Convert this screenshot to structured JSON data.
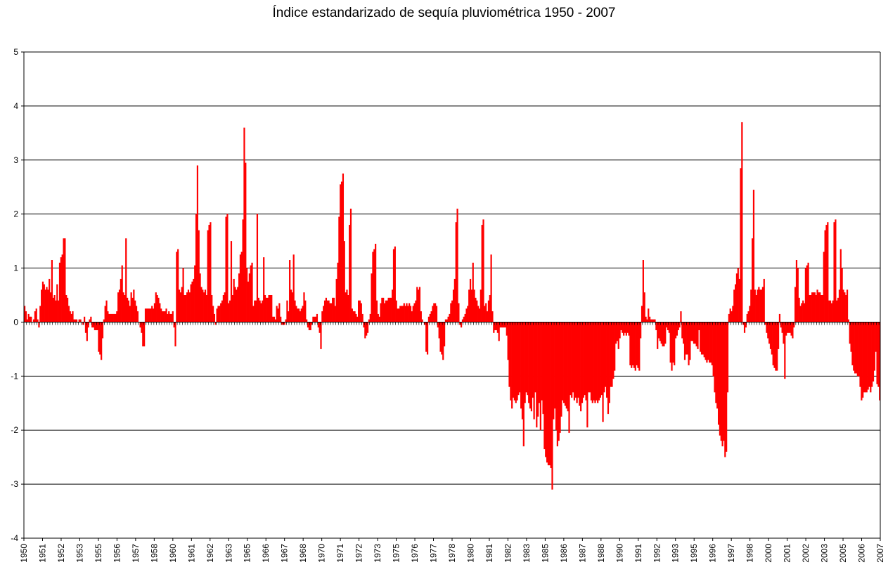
{
  "chart_data": {
    "type": "bar",
    "title": "Índice estandarizado de sequía pluviométrica 1950 - 2007",
    "xlabel": "",
    "ylabel": "",
    "ylim": [
      -4,
      5
    ],
    "yticks": [
      5,
      4,
      3,
      2,
      1,
      0,
      -1,
      -2,
      -3,
      -4
    ],
    "grid": true,
    "legend": "none",
    "color": "#ff0000",
    "x_tick_labels": [
      "1950",
      "1951",
      "1952",
      "1953",
      "1955",
      "1956",
      "1957",
      "1958",
      "1960",
      "1961",
      "1962",
      "1963",
      "1965",
      "1966",
      "1967",
      "1968",
      "1970",
      "1971",
      "1972",
      "1973",
      "1975",
      "1976",
      "1977",
      "1978",
      "1980",
      "1981",
      "1982",
      "1983",
      "1985",
      "1986",
      "1987",
      "1988",
      "1990",
      "1991",
      "1992",
      "1993",
      "1995",
      "1996",
      "1997",
      "1998",
      "2000",
      "2001",
      "2002",
      "2003",
      "2005",
      "2006",
      "2007"
    ],
    "series": [
      {
        "start": "1950-01",
        "frequency": "monthly",
        "values": [
          0.3,
          0.2,
          0.05,
          0.15,
          0.1,
          0.1,
          0,
          0.05,
          0.2,
          0.25,
          0.05,
          -0.1,
          0.3,
          0.6,
          0.75,
          0.7,
          0.6,
          0.65,
          0.6,
          0.8,
          0.55,
          1.15,
          0.45,
          0.5,
          0.4,
          0.7,
          0.4,
          1.1,
          1.2,
          1.25,
          1.55,
          1.55,
          0.5,
          0.45,
          0.3,
          0.2,
          0.15,
          0.2,
          0.05,
          0.05,
          0.05,
          0,
          0.05,
          0.05,
          0,
          -0.05,
          0.1,
          -0.2,
          -0.35,
          -0.1,
          0.05,
          0.1,
          -0.1,
          -0.1,
          -0.15,
          -0.15,
          -0.15,
          -0.55,
          -0.6,
          -0.7,
          -0.3,
          0.05,
          0.3,
          0.4,
          0.2,
          0.15,
          0.15,
          0.15,
          0.15,
          0.15,
          0.15,
          0.2,
          0.55,
          0.6,
          0.8,
          1.05,
          0.55,
          0.5,
          1.55,
          0.45,
          0.4,
          0.3,
          0.55,
          0.45,
          0.6,
          0.4,
          0.3,
          0.2,
          0,
          -0.1,
          -0.2,
          -0.45,
          -0.45,
          0.25,
          0.25,
          0.25,
          0.25,
          0.25,
          0.3,
          0.25,
          0.35,
          0.55,
          0.5,
          0.45,
          0.35,
          0.25,
          0.2,
          0.2,
          0.2,
          0.25,
          0.15,
          0.2,
          0.15,
          0.15,
          0.2,
          -0.1,
          -0.45,
          1.3,
          1.35,
          0.6,
          0.55,
          0.65,
          1.0,
          0.5,
          0.5,
          0.55,
          0.6,
          0.55,
          0.7,
          0.75,
          0.8,
          1.05,
          2.0,
          2.9,
          1.7,
          0.9,
          0.65,
          0.6,
          0.55,
          0.6,
          0.5,
          1.7,
          1.8,
          1.85,
          0.5,
          0.3,
          0.15,
          -0.05,
          0.25,
          0.3,
          0.3,
          0.35,
          0.4,
          0.5,
          0.55,
          1.95,
          2.0,
          0.35,
          0.4,
          1.5,
          0.5,
          0.8,
          0.65,
          0.6,
          0.65,
          0.9,
          1.25,
          1.3,
          1.9,
          3.6,
          2.95,
          1.0,
          0.75,
          0.9,
          1.05,
          1.1,
          0.3,
          0.4,
          0.4,
          2.0,
          0.45,
          0.4,
          0.35,
          0.4,
          1.2,
          0.5,
          0.45,
          0.45,
          0.5,
          0.5,
          0.5,
          0.1,
          0.1,
          0.05,
          0.3,
          0.25,
          0.35,
          0.1,
          -0.05,
          -0.05,
          -0.05,
          0.05,
          0.4,
          0.2,
          1.15,
          0.6,
          0.55,
          1.25,
          0.4,
          0.3,
          0.25,
          0.25,
          0.2,
          0.25,
          0.3,
          0.55,
          0.4,
          0.05,
          -0.1,
          -0.15,
          -0.15,
          -0.05,
          0.1,
          0.1,
          0.1,
          0.15,
          -0.1,
          -0.2,
          -0.5,
          0.2,
          0.3,
          0.4,
          0.45,
          0.4,
          0.4,
          0.35,
          0.35,
          0.45,
          0.45,
          0.3,
          0.8,
          1.1,
          1.95,
          2.55,
          2.6,
          2.75,
          1.5,
          0.55,
          0.6,
          0.5,
          1.8,
          2.1,
          0.25,
          0.2,
          0.2,
          0.15,
          0.1,
          0.4,
          0.4,
          0.35,
          0.15,
          -0.1,
          -0.3,
          -0.25,
          -0.2,
          0.05,
          0.15,
          0.9,
          1.3,
          1.35,
          1.45,
          0.4,
          0.15,
          0.1,
          0.35,
          0.45,
          0.45,
          0.35,
          0.4,
          0.4,
          0.45,
          0.45,
          0.45,
          0.6,
          1.35,
          1.4,
          0.4,
          0.25,
          0.25,
          0.3,
          0.3,
          0.3,
          0.35,
          0.3,
          0.35,
          0.3,
          0.35,
          0.3,
          0.2,
          0.3,
          0.35,
          0.4,
          0.65,
          0.6,
          0.65,
          0.2,
          0.05,
          0,
          -0.05,
          -0.55,
          -0.6,
          0.1,
          0.15,
          0.2,
          0.3,
          0.35,
          0.35,
          0.3,
          -0.1,
          -0.3,
          -0.55,
          -0.6,
          -0.7,
          -0.45,
          0.05,
          0.05,
          0.1,
          0.15,
          0.35,
          0.4,
          0.6,
          0.8,
          1.85,
          2.1,
          0.35,
          -0.05,
          -0.1,
          0.05,
          0.1,
          0.15,
          0.25,
          0.3,
          0.6,
          0.8,
          0.6,
          1.1,
          0.6,
          0.45,
          0.4,
          0.3,
          0.25,
          0.6,
          1.8,
          1.9,
          0.3,
          0.35,
          0.2,
          0.4,
          0.5,
          1.25,
          0.2,
          -0.2,
          -0.15,
          -0.15,
          -0.2,
          -0.35,
          -0.1,
          -0.1,
          -0.1,
          -0.1,
          -0.1,
          -0.25,
          -0.7,
          -1.2,
          -1.45,
          -1.6,
          -1.4,
          -1.45,
          -1.5,
          -1.45,
          -1.35,
          -1.3,
          -1.6,
          -1.8,
          -2.3,
          -1.5,
          -1.3,
          -1.35,
          -1.5,
          -1.6,
          -1.65,
          -1.4,
          -1.8,
          -1.3,
          -1.95,
          -1.75,
          -1.5,
          -2.0,
          -1.45,
          -1.7,
          -2.35,
          -2.5,
          -2.6,
          -2.65,
          -2.65,
          -2.7,
          -3.1,
          -1.8,
          -1.6,
          -2.0,
          -2.3,
          -2.2,
          -2.05,
          -1.75,
          -1.45,
          -1.5,
          -1.55,
          -1.6,
          -1.65,
          -2.05,
          -1.35,
          -1.4,
          -1.3,
          -1.45,
          -1.4,
          -1.5,
          -1.4,
          -1.55,
          -1.65,
          -1.5,
          -1.4,
          -1.35,
          -1.45,
          -1.95,
          -1.3,
          -1.3,
          -1.45,
          -1.5,
          -1.45,
          -1.5,
          -1.45,
          -1.5,
          -1.45,
          -1.4,
          -1.35,
          -1.85,
          -1.3,
          -1.2,
          -1.4,
          -1.7,
          -1.5,
          -1.2,
          -1.2,
          -1.05,
          -0.9,
          -0.4,
          -0.35,
          -0.5,
          -0.3,
          -0.15,
          -0.2,
          -0.25,
          -0.2,
          -0.25,
          -0.2,
          -0.25,
          -0.8,
          -0.85,
          -0.8,
          -0.85,
          -0.9,
          -0.8,
          -0.85,
          -0.9,
          -0.3,
          0.3,
          1.15,
          0.55,
          0.1,
          0.05,
          0.25,
          0.1,
          0.05,
          0.05,
          0.05,
          0.05,
          -0.15,
          -0.5,
          -0.3,
          -0.35,
          -0.4,
          -0.45,
          -0.45,
          -0.4,
          -0.1,
          -0.15,
          -0.2,
          -0.75,
          -0.9,
          -0.75,
          -0.8,
          -0.3,
          -0.25,
          -0.15,
          -0.1,
          0.2,
          -0.3,
          -0.4,
          -0.7,
          -0.6,
          -0.6,
          -0.8,
          -0.7,
          -0.35,
          -0.35,
          -0.4,
          -0.4,
          -0.45,
          -0.5,
          -0.15,
          -0.55,
          -0.6,
          -0.6,
          -0.65,
          -0.7,
          -0.75,
          -0.7,
          -0.75,
          -0.75,
          -0.8,
          -1.0,
          -1.3,
          -1.5,
          -1.6,
          -1.9,
          -2.1,
          -2.2,
          -2.3,
          -2.2,
          -2.5,
          -2.4,
          -1.3,
          0.15,
          0.25,
          0.2,
          0.3,
          0.6,
          0.7,
          0.9,
          1.0,
          0.8,
          2.85,
          3.7,
          -0.05,
          -0.2,
          -0.1,
          0.15,
          0.2,
          0.3,
          0.6,
          1.55,
          2.45,
          0.6,
          0.5,
          0.6,
          0.65,
          0.6,
          0.6,
          0.65,
          0.8,
          -0.05,
          -0.2,
          -0.3,
          -0.4,
          -0.5,
          -0.6,
          -0.8,
          -0.85,
          -0.9,
          -0.9,
          -0.5,
          0.15,
          -0.1,
          -0.2,
          -0.4,
          -1.05,
          -0.25,
          -0.2,
          -0.2,
          -0.2,
          -0.25,
          -0.3,
          -0.1,
          0.65,
          1.15,
          1.0,
          0.45,
          0.3,
          0.35,
          0.4,
          0.35,
          1.0,
          1.05,
          1.1,
          0.5,
          0.5,
          0.55,
          0.55,
          0.55,
          0.5,
          0.6,
          0.55,
          0.55,
          0.5,
          0.5,
          1.3,
          1.7,
          1.8,
          1.85,
          0.4,
          0.4,
          0.35,
          0.4,
          1.85,
          1.9,
          0.4,
          0.45,
          0.6,
          1.35,
          1.0,
          0.6,
          0.55,
          0.5,
          0.6,
          0.05,
          -0.4,
          -0.55,
          -0.8,
          -0.9,
          -0.95,
          -0.95,
          -1.0,
          -1.0,
          -1.2,
          -1.45,
          -1.4,
          -1.3,
          -1.3,
          -1.3,
          -1.25,
          -1.2,
          -1.3,
          -1.2,
          -1.1,
          -0.9,
          -0.55,
          -1.15,
          -1.2,
          -1.45
        ]
      }
    ]
  }
}
